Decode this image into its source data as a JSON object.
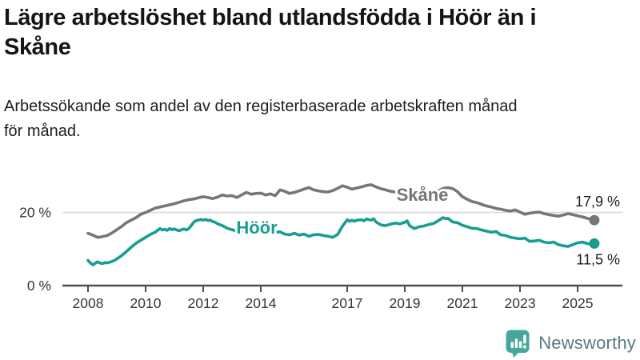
{
  "header": {
    "title_lines": [
      "Lägre arbetslöshet bland utlandsfödda i Höör än i",
      "Skåne"
    ],
    "subtitle_lines": [
      "Arbetssökande som andel av den registerbaserade arbetskraften månad",
      "för månad."
    ]
  },
  "chart_data": {
    "type": "line",
    "title": "Lägre arbetslöshet bland utlandsfödda i Höör än i Skåne",
    "subtitle": "Arbetssökande som andel av den registerbaserade arbetskraften månad för månad.",
    "x_axis": {
      "tick_years": [
        2008,
        2010,
        2012,
        2014,
        2017,
        2019,
        2021,
        2023,
        2025
      ],
      "tick_labels": [
        "2008",
        "2010",
        "2012",
        "2014",
        "2017",
        "2019",
        "2021",
        "2023",
        "2025"
      ],
      "range": [
        2008.0,
        2025.75
      ]
    },
    "y_axis": {
      "tick_values": [
        0,
        20
      ],
      "tick_labels": [
        "0 %",
        "20 %"
      ],
      "range": [
        0,
        30
      ],
      "gridline_at": 20,
      "unit": "%"
    },
    "legend_position": "inline-labels-on-lines",
    "grid": "single horizontal gridline at 20 %, baseline axis at 0 %",
    "series": [
      {
        "name": "Skåne",
        "color": "#767676",
        "end_label": "17,9 %",
        "end_value": 17.9,
        "points": [
          [
            2008.0,
            14.3
          ],
          [
            2008.17,
            13.8
          ],
          [
            2008.33,
            13.2
          ],
          [
            2008.5,
            13.4
          ],
          [
            2008.67,
            13.7
          ],
          [
            2008.83,
            14.4
          ],
          [
            2009.0,
            15.3
          ],
          [
            2009.17,
            16.2
          ],
          [
            2009.33,
            17.2
          ],
          [
            2009.5,
            17.9
          ],
          [
            2009.67,
            18.6
          ],
          [
            2009.83,
            19.5
          ],
          [
            2010.0,
            20.0
          ],
          [
            2010.17,
            20.6
          ],
          [
            2010.33,
            21.2
          ],
          [
            2010.5,
            21.5
          ],
          [
            2010.67,
            21.8
          ],
          [
            2010.83,
            22.1
          ],
          [
            2011.0,
            22.4
          ],
          [
            2011.17,
            22.8
          ],
          [
            2011.33,
            23.2
          ],
          [
            2011.5,
            23.5
          ],
          [
            2011.67,
            23.7
          ],
          [
            2011.83,
            24.0
          ],
          [
            2012.0,
            24.3
          ],
          [
            2012.17,
            24.1
          ],
          [
            2012.33,
            23.8
          ],
          [
            2012.5,
            24.2
          ],
          [
            2012.67,
            24.8
          ],
          [
            2012.83,
            24.5
          ],
          [
            2013.0,
            24.6
          ],
          [
            2013.17,
            24.1
          ],
          [
            2013.33,
            24.8
          ],
          [
            2013.5,
            25.5
          ],
          [
            2013.67,
            25.0
          ],
          [
            2013.83,
            25.2
          ],
          [
            2014.0,
            25.3
          ],
          [
            2014.17,
            24.8
          ],
          [
            2014.33,
            25.1
          ],
          [
            2014.5,
            24.6
          ],
          [
            2014.67,
            26.2
          ],
          [
            2014.83,
            25.8
          ],
          [
            2015.0,
            25.2
          ],
          [
            2015.17,
            25.5
          ],
          [
            2015.33,
            25.9
          ],
          [
            2015.5,
            26.4
          ],
          [
            2015.67,
            26.8
          ],
          [
            2015.83,
            26.2
          ],
          [
            2016.0,
            25.9
          ],
          [
            2016.17,
            25.7
          ],
          [
            2016.33,
            25.6
          ],
          [
            2016.5,
            26.0
          ],
          [
            2016.67,
            26.6
          ],
          [
            2016.83,
            27.3
          ],
          [
            2017.0,
            26.9
          ],
          [
            2017.17,
            26.4
          ],
          [
            2017.33,
            26.7
          ],
          [
            2017.5,
            27.0
          ],
          [
            2017.67,
            27.4
          ],
          [
            2017.83,
            27.6
          ],
          [
            2018.0,
            27.0
          ],
          [
            2018.17,
            26.5
          ],
          [
            2018.33,
            26.2
          ],
          [
            2018.5,
            25.8
          ],
          [
            2018.67,
            25.6
          ],
          [
            2018.83,
            25.5
          ],
          [
            2019.0,
            25.4
          ],
          [
            2019.17,
            25.2
          ],
          [
            2019.33,
            25.0
          ],
          [
            2019.5,
            25.2
          ],
          [
            2019.67,
            25.0
          ],
          [
            2019.83,
            24.9
          ],
          [
            2020.0,
            25.1
          ],
          [
            2020.17,
            25.9
          ],
          [
            2020.33,
            26.6
          ],
          [
            2020.5,
            26.8
          ],
          [
            2020.67,
            26.5
          ],
          [
            2020.83,
            25.7
          ],
          [
            2021.0,
            24.3
          ],
          [
            2021.17,
            23.6
          ],
          [
            2021.33,
            23.0
          ],
          [
            2021.5,
            22.7
          ],
          [
            2021.67,
            22.2
          ],
          [
            2021.83,
            21.8
          ],
          [
            2022.0,
            21.5
          ],
          [
            2022.17,
            21.1
          ],
          [
            2022.33,
            20.9
          ],
          [
            2022.5,
            20.6
          ],
          [
            2022.67,
            20.4
          ],
          [
            2022.83,
            20.7
          ],
          [
            2023.0,
            20.1
          ],
          [
            2023.17,
            19.5
          ],
          [
            2023.33,
            19.8
          ],
          [
            2023.5,
            20.0
          ],
          [
            2023.67,
            20.1
          ],
          [
            2023.83,
            19.7
          ],
          [
            2024.0,
            19.4
          ],
          [
            2024.17,
            19.2
          ],
          [
            2024.33,
            19.0
          ],
          [
            2024.5,
            19.3
          ],
          [
            2024.67,
            19.7
          ],
          [
            2024.83,
            19.4
          ],
          [
            2025.0,
            19.1
          ],
          [
            2025.17,
            18.8
          ],
          [
            2025.33,
            18.4
          ],
          [
            2025.5,
            18.1
          ],
          [
            2025.58,
            17.9
          ]
        ]
      },
      {
        "name": "Höör",
        "color": "#179e90",
        "end_label": "11,5 %",
        "end_value": 11.5,
        "points": [
          [
            2008.0,
            6.9
          ],
          [
            2008.08,
            6.2
          ],
          [
            2008.17,
            5.7
          ],
          [
            2008.25,
            6.1
          ],
          [
            2008.33,
            6.5
          ],
          [
            2008.42,
            6.2
          ],
          [
            2008.5,
            6.0
          ],
          [
            2008.58,
            6.3
          ],
          [
            2008.67,
            6.2
          ],
          [
            2008.75,
            6.4
          ],
          [
            2008.83,
            6.6
          ],
          [
            2008.92,
            6.9
          ],
          [
            2009.0,
            7.3
          ],
          [
            2009.17,
            8.2
          ],
          [
            2009.33,
            9.3
          ],
          [
            2009.5,
            10.5
          ],
          [
            2009.67,
            11.6
          ],
          [
            2009.83,
            12.4
          ],
          [
            2010.0,
            13.2
          ],
          [
            2010.17,
            14.0
          ],
          [
            2010.33,
            14.6
          ],
          [
            2010.5,
            15.6
          ],
          [
            2010.58,
            15.2
          ],
          [
            2010.67,
            15.4
          ],
          [
            2010.75,
            15.1
          ],
          [
            2010.83,
            15.6
          ],
          [
            2010.92,
            15.3
          ],
          [
            2011.0,
            15.5
          ],
          [
            2011.08,
            15.2
          ],
          [
            2011.17,
            15.0
          ],
          [
            2011.25,
            15.3
          ],
          [
            2011.33,
            15.5
          ],
          [
            2011.42,
            15.2
          ],
          [
            2011.5,
            15.6
          ],
          [
            2011.58,
            16.4
          ],
          [
            2011.67,
            17.3
          ],
          [
            2011.75,
            17.8
          ],
          [
            2011.83,
            17.9
          ],
          [
            2011.92,
            18.1
          ],
          [
            2012.0,
            17.9
          ],
          [
            2012.08,
            18.1
          ],
          [
            2012.17,
            17.8
          ],
          [
            2012.25,
            17.9
          ],
          [
            2012.33,
            17.5
          ],
          [
            2012.42,
            17.3
          ],
          [
            2012.5,
            16.9
          ],
          [
            2012.67,
            16.4
          ],
          [
            2012.83,
            15.7
          ],
          [
            2013.0,
            15.3
          ],
          [
            2013.17,
            14.9
          ],
          [
            2013.33,
            15.1
          ],
          [
            2013.5,
            14.7
          ],
          [
            2013.67,
            15.0
          ],
          [
            2013.83,
            14.8
          ],
          [
            2014.0,
            15.0
          ],
          [
            2014.17,
            14.7
          ],
          [
            2014.33,
            14.9
          ],
          [
            2014.5,
            14.6
          ],
          [
            2014.67,
            14.7
          ],
          [
            2014.83,
            14.1
          ],
          [
            2015.0,
            13.9
          ],
          [
            2015.17,
            14.3
          ],
          [
            2015.33,
            13.8
          ],
          [
            2015.5,
            14.1
          ],
          [
            2015.67,
            13.5
          ],
          [
            2015.83,
            13.9
          ],
          [
            2016.0,
            14.0
          ],
          [
            2016.17,
            13.7
          ],
          [
            2016.33,
            13.5
          ],
          [
            2016.5,
            13.2
          ],
          [
            2016.67,
            14.0
          ],
          [
            2016.83,
            16.2
          ],
          [
            2017.0,
            18.0
          ],
          [
            2017.08,
            17.6
          ],
          [
            2017.17,
            17.9
          ],
          [
            2017.25,
            17.6
          ],
          [
            2017.33,
            17.9
          ],
          [
            2017.5,
            18.0
          ],
          [
            2017.58,
            17.7
          ],
          [
            2017.67,
            18.2
          ],
          [
            2017.83,
            17.9
          ],
          [
            2017.92,
            18.3
          ],
          [
            2018.0,
            17.4
          ],
          [
            2018.17,
            16.6
          ],
          [
            2018.33,
            16.4
          ],
          [
            2018.5,
            16.8
          ],
          [
            2018.67,
            17.1
          ],
          [
            2018.83,
            16.9
          ],
          [
            2019.0,
            17.3
          ],
          [
            2019.08,
            17.7
          ],
          [
            2019.17,
            16.4
          ],
          [
            2019.33,
            15.6
          ],
          [
            2019.5,
            16.1
          ],
          [
            2019.67,
            16.3
          ],
          [
            2019.83,
            16.7
          ],
          [
            2020.0,
            17.0
          ],
          [
            2020.17,
            17.8
          ],
          [
            2020.33,
            18.6
          ],
          [
            2020.42,
            18.3
          ],
          [
            2020.5,
            18.4
          ],
          [
            2020.58,
            17.9
          ],
          [
            2020.67,
            17.4
          ],
          [
            2020.83,
            17.2
          ],
          [
            2021.0,
            16.5
          ],
          [
            2021.17,
            16.1
          ],
          [
            2021.33,
            15.7
          ],
          [
            2021.5,
            15.6
          ],
          [
            2021.67,
            15.2
          ],
          [
            2021.83,
            14.9
          ],
          [
            2022.0,
            14.6
          ],
          [
            2022.17,
            14.8
          ],
          [
            2022.33,
            13.9
          ],
          [
            2022.5,
            13.7
          ],
          [
            2022.67,
            13.2
          ],
          [
            2022.83,
            13.0
          ],
          [
            2023.0,
            12.8
          ],
          [
            2023.17,
            13.0
          ],
          [
            2023.33,
            12.1
          ],
          [
            2023.5,
            12.2
          ],
          [
            2023.67,
            12.4
          ],
          [
            2023.83,
            11.9
          ],
          [
            2024.0,
            11.7
          ],
          [
            2024.17,
            11.9
          ],
          [
            2024.33,
            11.2
          ],
          [
            2024.5,
            10.9
          ],
          [
            2024.67,
            10.7
          ],
          [
            2024.83,
            11.2
          ],
          [
            2025.0,
            11.7
          ],
          [
            2025.17,
            11.9
          ],
          [
            2025.33,
            11.5
          ],
          [
            2025.5,
            11.2
          ],
          [
            2025.58,
            11.5
          ]
        ]
      }
    ],
    "colors": {
      "skane_line": "#767676",
      "hoor_line": "#179e90",
      "gridline": "#dadada",
      "axis": "#4f4f4f"
    }
  },
  "logo": {
    "text": "Newsworthy",
    "icon": "speech-bubble-bar-chart-exclamation",
    "icon_color": "#44a79a",
    "text_color": "#5a7983"
  }
}
